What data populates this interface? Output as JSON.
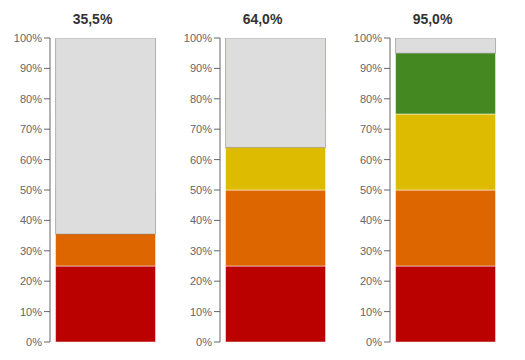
{
  "chart_data": [
    {
      "type": "bar",
      "title": "35,5%",
      "values": [
        35.5
      ],
      "ylim": [
        0,
        100
      ],
      "yticks": [
        {
          "value": 0,
          "label": "0%"
        },
        {
          "value": 10,
          "label": "10%"
        },
        {
          "value": 20,
          "label": "20%"
        },
        {
          "value": 30,
          "label": "30%"
        },
        {
          "value": 40,
          "label": "40%"
        },
        {
          "value": 50,
          "label": "50%"
        },
        {
          "value": 60,
          "label": "60%"
        },
        {
          "value": 70,
          "label": "70%"
        },
        {
          "value": 80,
          "label": "80%"
        },
        {
          "value": 90,
          "label": "90%"
        },
        {
          "value": 100,
          "label": "100%"
        }
      ],
      "bands": [
        {
          "start": 0,
          "end": 25,
          "color": "#bb0000"
        },
        {
          "start": 25,
          "end": 50,
          "color": "#dd6600"
        },
        {
          "start": 50,
          "end": 75,
          "color": "#ddbb00"
        },
        {
          "start": 75,
          "end": 100,
          "color": "#448822"
        }
      ],
      "tick_labels": "y"
    },
    {
      "type": "bar",
      "title": "64,0%",
      "values": [
        64.0
      ],
      "ylim": [
        0,
        100
      ],
      "yticks": [
        {
          "value": 0,
          "label": "0%"
        },
        {
          "value": 10,
          "label": "10%"
        },
        {
          "value": 20,
          "label": "20%"
        },
        {
          "value": 30,
          "label": "30%"
        },
        {
          "value": 40,
          "label": "40%"
        },
        {
          "value": 50,
          "label": "50%"
        },
        {
          "value": 60,
          "label": "60%"
        },
        {
          "value": 70,
          "label": "70%"
        },
        {
          "value": 80,
          "label": "80%"
        },
        {
          "value": 90,
          "label": "90%"
        },
        {
          "value": 100,
          "label": "100%"
        }
      ],
      "bands": [
        {
          "start": 0,
          "end": 25,
          "color": "#bb0000"
        },
        {
          "start": 25,
          "end": 50,
          "color": "#dd6600"
        },
        {
          "start": 50,
          "end": 75,
          "color": "#ddbb00"
        },
        {
          "start": 75,
          "end": 100,
          "color": "#448822"
        }
      ],
      "tick_labels": "y"
    },
    {
      "type": "bar",
      "title": "95,0%",
      "values": [
        95.0
      ],
      "ylim": [
        0,
        100
      ],
      "yticks": [
        {
          "value": 0,
          "label": "0%"
        },
        {
          "value": 10,
          "label": "10%"
        },
        {
          "value": 20,
          "label": "20%"
        },
        {
          "value": 30,
          "label": "30%"
        },
        {
          "value": 40,
          "label": "40%"
        },
        {
          "value": 50,
          "label": "50%"
        },
        {
          "value": 60,
          "label": "60%"
        },
        {
          "value": 70,
          "label": "70%"
        },
        {
          "value": 80,
          "label": "80%"
        },
        {
          "value": 90,
          "label": "90%"
        },
        {
          "value": 100,
          "label": "100%"
        }
      ],
      "bands": [
        {
          "start": 0,
          "end": 25,
          "color": "#bb0000"
        },
        {
          "start": 25,
          "end": 50,
          "color": "#dd6600"
        },
        {
          "start": 50,
          "end": 75,
          "color": "#ddbb00"
        },
        {
          "start": 75,
          "end": 100,
          "color": "#448822"
        }
      ],
      "tick_labels": "y"
    }
  ]
}
